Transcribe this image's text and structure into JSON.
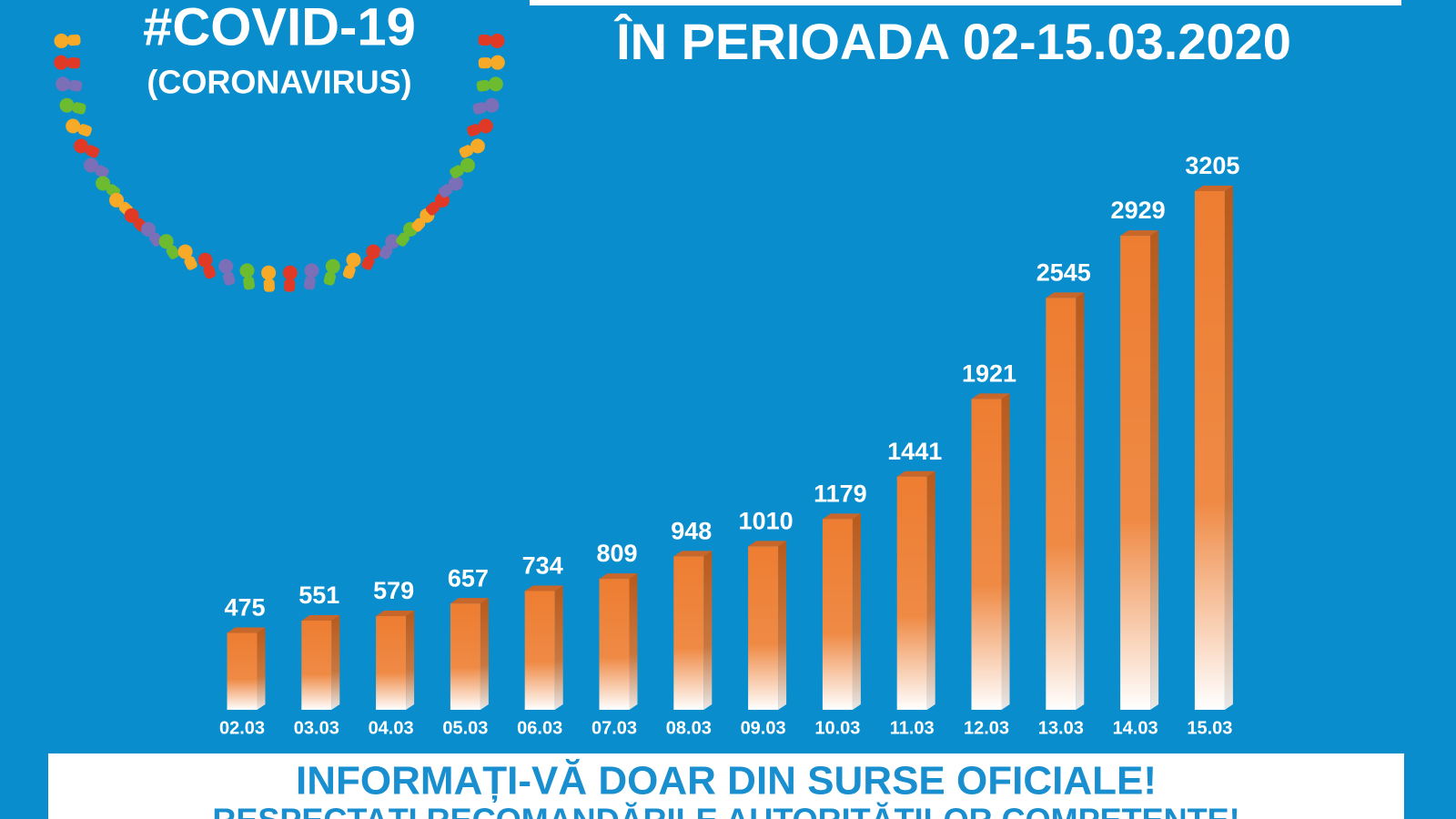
{
  "chart_data": {
    "type": "bar",
    "logo_title": "#COVID-19",
    "logo_subtitle": "(CORONAVIRUS)",
    "title": "ÎN PERIOADA 02-15.03.2020",
    "categories": [
      "02.03",
      "03.03",
      "04.03",
      "05.03",
      "06.03",
      "07.03",
      "08.03",
      "09.03",
      "10.03",
      "11.03",
      "12.03",
      "13.03",
      "14.03",
      "15.03"
    ],
    "values": [
      475,
      551,
      579,
      657,
      734,
      809,
      948,
      1010,
      1179,
      1441,
      1921,
      2545,
      2929,
      3205
    ],
    "color": "#ed7d31",
    "footer": [
      "INFORMAȚI-VĂ DOAR DIN SURSE OFICIALE!",
      "RESPECTAȚI RECOMANDĂRILE AUTORITĂȚILOR COMPETENTE!"
    ]
  }
}
